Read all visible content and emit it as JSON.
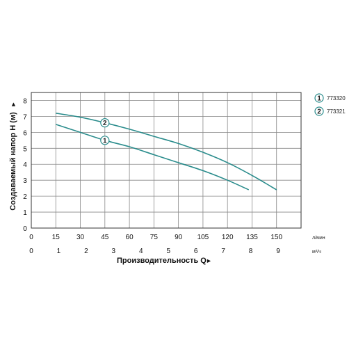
{
  "chart_data": {
    "type": "line",
    "ylabel": "Создаваемый напор H (м)",
    "xlabel": "Производительность Q",
    "xlabel_arrow": "►",
    "ylabel_arrow": "►",
    "x_unit_primary": "л/мин",
    "x_unit_secondary": "м³/ч",
    "xlim": [
      0,
      165
    ],
    "ylim": [
      0,
      8.5
    ],
    "grid": true,
    "legend_position": "right",
    "x_ticks_primary": [
      "0",
      "15",
      "30",
      "45",
      "60",
      "75",
      "90",
      "105",
      "120",
      "135",
      "150"
    ],
    "x_ticks_primary_values": [
      0,
      15,
      30,
      45,
      60,
      75,
      90,
      105,
      120,
      135,
      150
    ],
    "x_ticks_secondary": [
      "0",
      "1",
      "2",
      "3",
      "4",
      "5",
      "6",
      "7",
      "8",
      "9"
    ],
    "x_ticks_secondary_values": [
      0,
      1,
      2,
      3,
      4,
      5,
      6,
      7,
      8,
      9
    ],
    "y_ticks": [
      "0",
      "1",
      "2",
      "3",
      "4",
      "5",
      "6",
      "7",
      "8"
    ],
    "y_ticks_values": [
      0,
      1,
      2,
      3,
      4,
      5,
      6,
      7,
      8
    ],
    "series": [
      {
        "name": "773320",
        "marker_label": "1",
        "marker_x": 45,
        "color": "#2a8c8c",
        "x": [
          15,
          30,
          45,
          60,
          75,
          90,
          105,
          120,
          133
        ],
        "y": [
          6.5,
          6.0,
          5.5,
          5.1,
          4.6,
          4.1,
          3.6,
          3.0,
          2.4
        ]
      },
      {
        "name": "773321",
        "marker_label": "2",
        "marker_x": 45,
        "color": "#2a8c8c",
        "x": [
          15,
          30,
          45,
          60,
          75,
          90,
          105,
          120,
          135,
          150
        ],
        "y": [
          7.2,
          6.95,
          6.6,
          6.2,
          5.75,
          5.3,
          4.75,
          4.1,
          3.3,
          2.4
        ]
      }
    ]
  }
}
